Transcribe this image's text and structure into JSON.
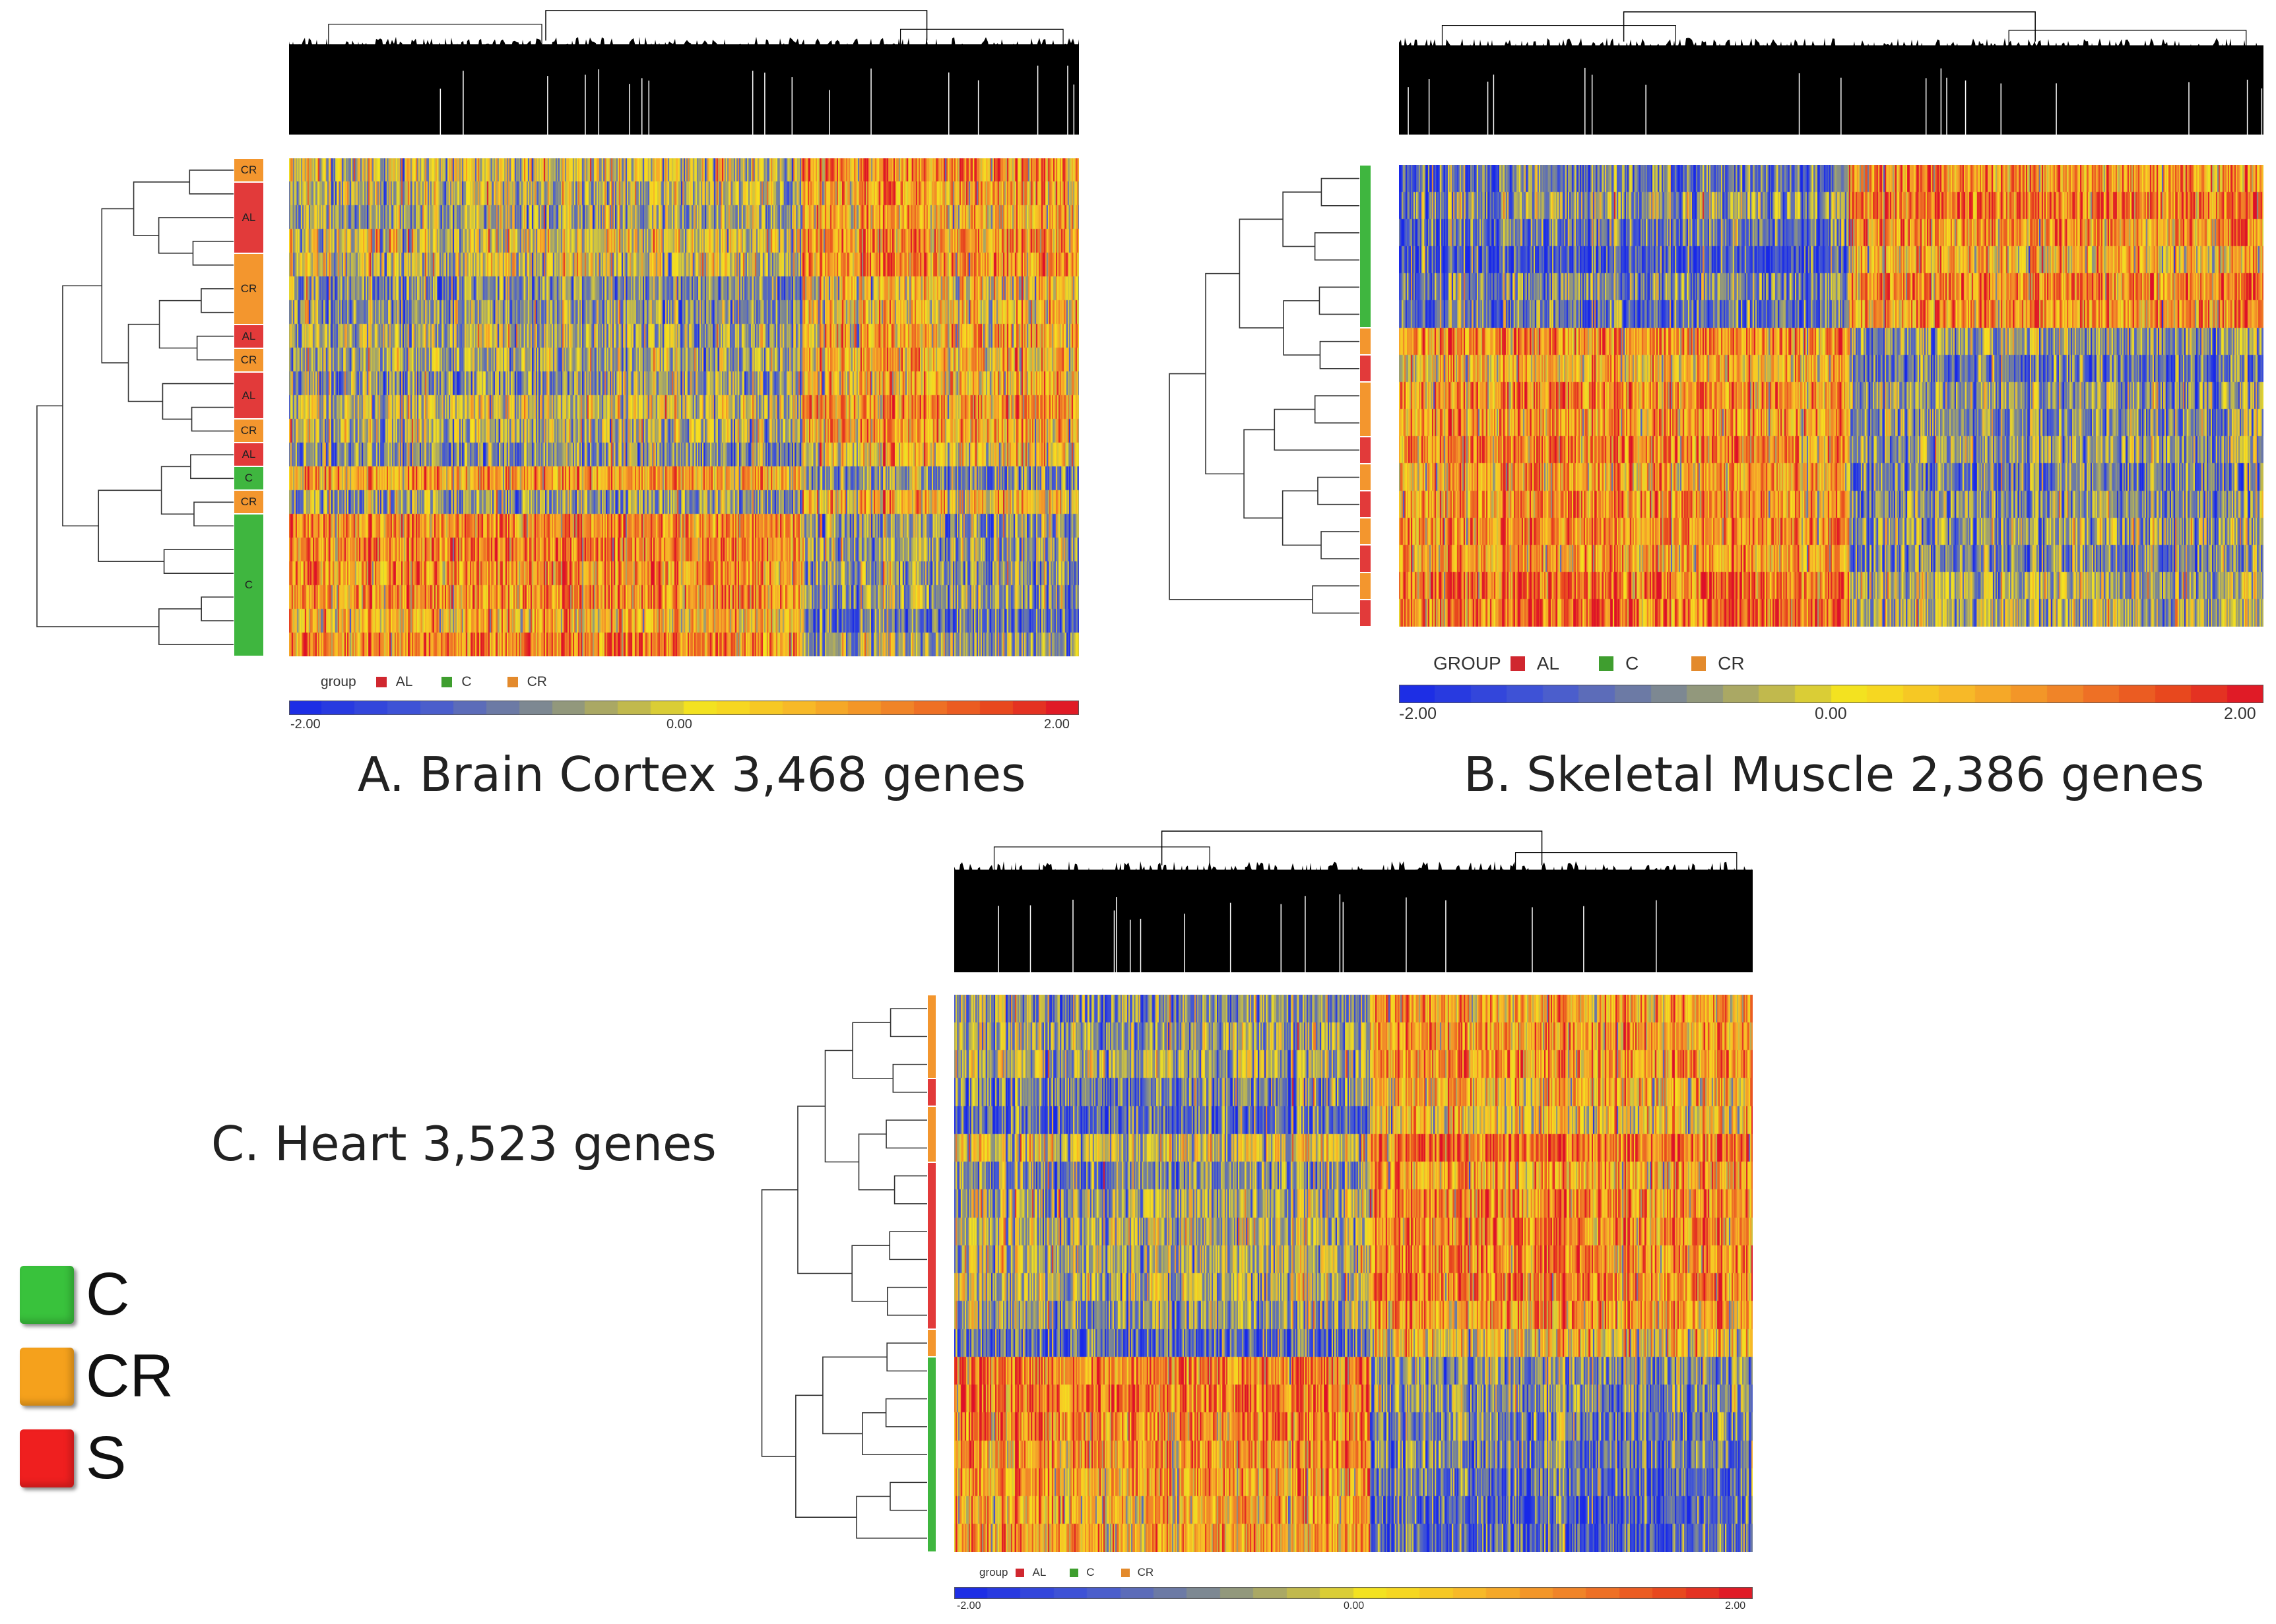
{
  "colors": {
    "AL": "#e23a3a",
    "C": "#3fb63f",
    "CR": "#f3962e",
    "S": "#e01e1e",
    "scale_low": "#1b2ee6",
    "scale_mid": "#f2e11a",
    "scale_high": "#e0102a"
  },
  "big_legend": [
    {
      "label": "C",
      "icon": "green-square-icon",
      "color": "#39c23c"
    },
    {
      "label": "CR",
      "icon": "orange-square-icon",
      "color": "#f5a11c"
    },
    {
      "label": "S",
      "icon": "red-square-icon",
      "color": "#ef1f1f"
    }
  ],
  "chart_data": [
    {
      "type": "heatmap",
      "title": "A. Brain Cortex 3,468 genes",
      "tissue": "Brain Cortex",
      "genes": "3,468",
      "legend_title": "group",
      "legend": [
        "AL",
        "C",
        "CR"
      ],
      "scale_labels": [
        "-2.00",
        "0.00",
        "2.00"
      ],
      "scale_range": [
        -2,
        2
      ],
      "row_groups": [
        {
          "label": "CR",
          "group": "CR",
          "rows": 1
        },
        {
          "label": "AL",
          "group": "AL",
          "rows": 3
        },
        {
          "label": "CR",
          "group": "CR",
          "rows": 3
        },
        {
          "label": "AL",
          "group": "AL",
          "rows": 1
        },
        {
          "label": "CR",
          "group": "CR",
          "rows": 1
        },
        {
          "label": "AL",
          "group": "AL",
          "rows": 2
        },
        {
          "label": "CR",
          "group": "CR",
          "rows": 1
        },
        {
          "label": "AL",
          "group": "AL",
          "rows": 1
        },
        {
          "label": "C",
          "group": "C",
          "rows": 1
        },
        {
          "label": "CR",
          "group": "CR",
          "rows": 1
        },
        {
          "label": "C",
          "group": "C",
          "rows": 6
        }
      ],
      "column_split": 0.65,
      "block_means": [
        -0.4,
        0.6,
        0.9,
        -0.6
      ]
    },
    {
      "type": "heatmap",
      "title": "B. Skeletal Muscle 2,386 genes",
      "tissue": "Skeletal Muscle",
      "genes": "2,386",
      "legend_title": "GROUP",
      "legend": [
        "AL",
        "C",
        "CR"
      ],
      "scale_labels": [
        "-2.00",
        "0.00",
        "2.00"
      ],
      "scale_range": [
        -2,
        2
      ],
      "row_groups": [
        {
          "group": "C",
          "rows": 6
        },
        {
          "group": "CR",
          "rows": 1
        },
        {
          "group": "AL",
          "rows": 1
        },
        {
          "group": "CR",
          "rows": 2
        },
        {
          "group": "AL",
          "rows": 1
        },
        {
          "group": "CR",
          "rows": 1
        },
        {
          "group": "AL",
          "rows": 1
        },
        {
          "group": "CR",
          "rows": 1
        },
        {
          "group": "AL",
          "rows": 1
        },
        {
          "group": "CR",
          "rows": 1
        },
        {
          "group": "AL",
          "rows": 1
        }
      ],
      "column_split": 0.52,
      "block_means": [
        -0.9,
        1.0,
        0.9,
        -0.6
      ]
    },
    {
      "type": "heatmap",
      "title": "C. Heart 3,523 genes",
      "tissue": "Heart",
      "genes": "3,523",
      "legend_title": "group",
      "legend": [
        "AL",
        "C",
        "CR"
      ],
      "scale_labels": [
        "-2.00",
        "0.00",
        "2.00"
      ],
      "scale_range": [
        -2,
        2
      ],
      "row_groups": [
        {
          "group": "CR",
          "rows": 3
        },
        {
          "group": "AL",
          "rows": 1
        },
        {
          "group": "CR",
          "rows": 2
        },
        {
          "group": "AL",
          "rows": 6
        },
        {
          "group": "CR",
          "rows": 1
        },
        {
          "group": "C",
          "rows": 7
        }
      ],
      "column_split": 0.52,
      "block_means": [
        -0.6,
        0.8,
        1.0,
        -0.8
      ]
    }
  ]
}
